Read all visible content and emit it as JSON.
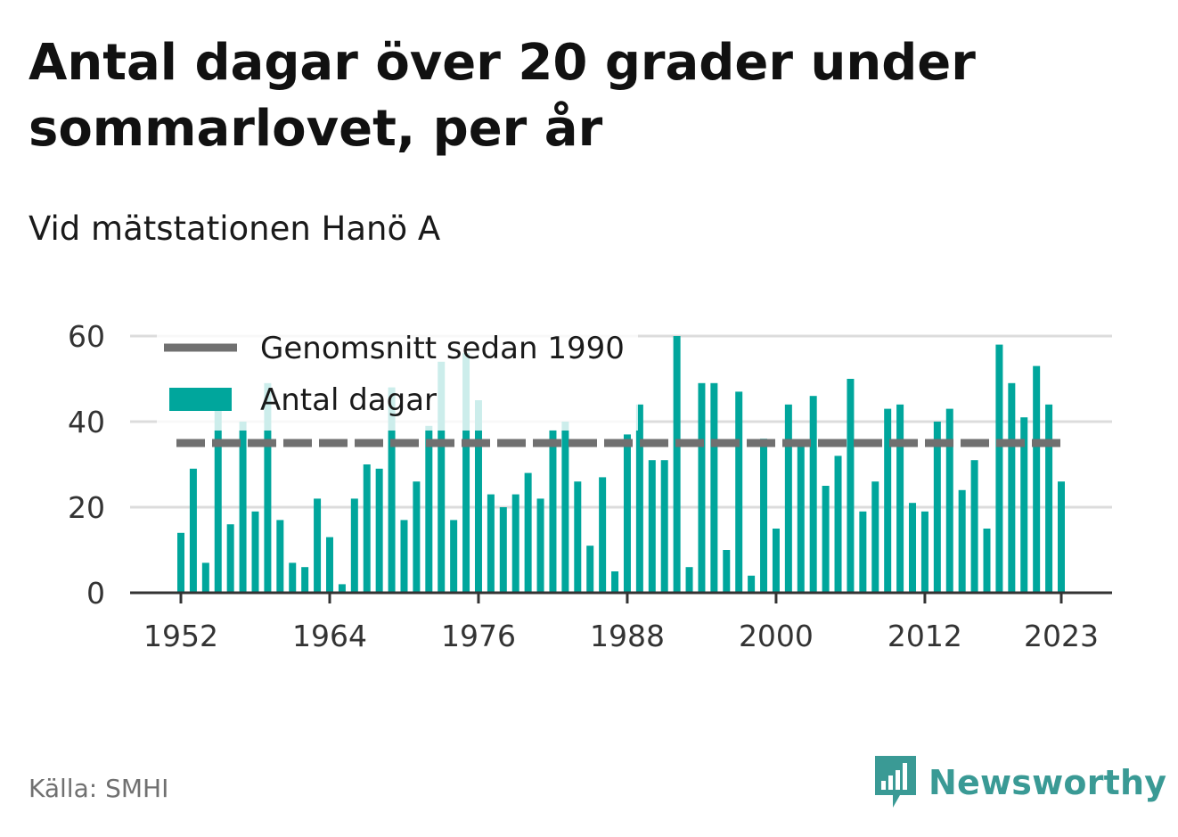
{
  "title": "Antal dagar över 20 grader under sommarlovet, per år",
  "subtitle": "Vid mätstationen Hanö A",
  "source": "Källa: SMHI",
  "brand": "Newsworthy",
  "colors": {
    "bar": "#00a69c",
    "average_line": "#707070",
    "grid": "#dcdcdc",
    "axis": "#333333",
    "brand": "#3a9a95"
  },
  "chart_data": {
    "type": "bar",
    "title": "Antal dagar över 20 grader under sommarlovet, per år",
    "xlabel": "",
    "ylabel": "",
    "ylim": [
      0,
      60
    ],
    "yticks": [
      0,
      20,
      40,
      60
    ],
    "xticks": [
      "1952",
      "1964",
      "1976",
      "1988",
      "2000",
      "2012",
      "2023"
    ],
    "x": [
      1952,
      1953,
      1954,
      1955,
      1956,
      1957,
      1958,
      1959,
      1960,
      1961,
      1962,
      1963,
      1964,
      1965,
      1966,
      1967,
      1968,
      1969,
      1970,
      1971,
      1972,
      1973,
      1974,
      1975,
      1976,
      1977,
      1978,
      1979,
      1980,
      1981,
      1982,
      1983,
      1984,
      1985,
      1986,
      1987,
      1988,
      1989,
      1990,
      1991,
      1992,
      1993,
      1994,
      1995,
      1996,
      1997,
      1998,
      1999,
      2000,
      2001,
      2002,
      2003,
      2004,
      2005,
      2006,
      2007,
      2008,
      2009,
      2010,
      2011,
      2012,
      2013,
      2014,
      2015,
      2016,
      2017,
      2018,
      2019,
      2020,
      2021,
      2022,
      2023
    ],
    "series": [
      {
        "name": "Antal dagar",
        "values": [
          14,
          29,
          7,
          43,
          16,
          40,
          19,
          49,
          17,
          7,
          6,
          22,
          13,
          2,
          22,
          30,
          29,
          48,
          17,
          26,
          39,
          54,
          17,
          56,
          45,
          23,
          20,
          23,
          28,
          22,
          38,
          40,
          26,
          11,
          27,
          5,
          37,
          44,
          31,
          31,
          60,
          6,
          49,
          49,
          10,
          47,
          4,
          36,
          15,
          44,
          35,
          46,
          25,
          32,
          50,
          19,
          26,
          43,
          44,
          21,
          19,
          40,
          43,
          24,
          31,
          15,
          58,
          49,
          41,
          53,
          44,
          26
        ]
      },
      {
        "name": "Genomsnitt sedan 1990",
        "value": 35
      }
    ],
    "legend": [
      "Genomsnitt sedan 1990",
      "Antal dagar"
    ],
    "legend_position": "top-left",
    "grid": true
  }
}
